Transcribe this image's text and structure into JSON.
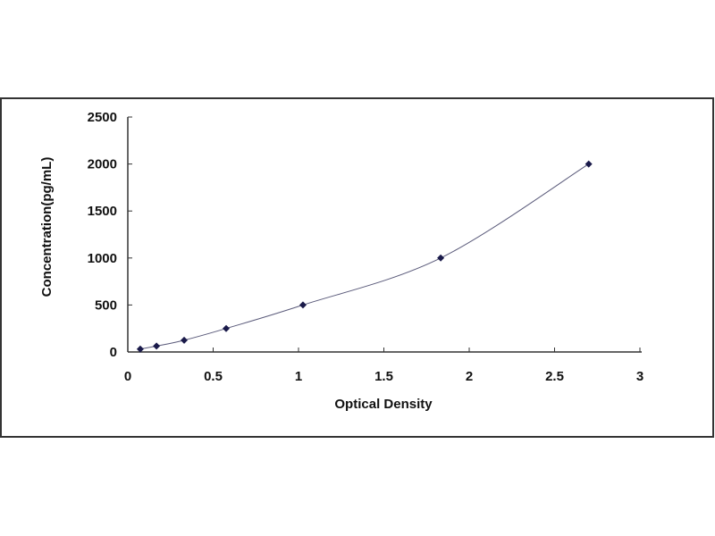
{
  "chart_data": {
    "type": "scatter",
    "title": "",
    "xlabel": "Optical Density",
    "ylabel": "Concentration(pg/mL)",
    "xlim": [
      0,
      3
    ],
    "ylim": [
      0,
      2500
    ],
    "xticks": [
      "0",
      "0.5",
      "1",
      "1.5",
      "2",
      "2.5",
      "3"
    ],
    "yticks": [
      "0",
      "500",
      "1000",
      "1500",
      "2000",
      "2500"
    ],
    "grid": false,
    "trendline": "smooth curve",
    "series": [
      {
        "x": [
          0.073,
          0.168,
          0.33,
          0.576,
          1.026,
          1.833,
          2.7
        ],
        "y": [
          31.25,
          62.5,
          125,
          250,
          500,
          1000,
          2000
        ]
      }
    ],
    "colors": {
      "marker": "#1a1a4a",
      "line": "#5a5a7a",
      "frame": "#333333"
    }
  }
}
